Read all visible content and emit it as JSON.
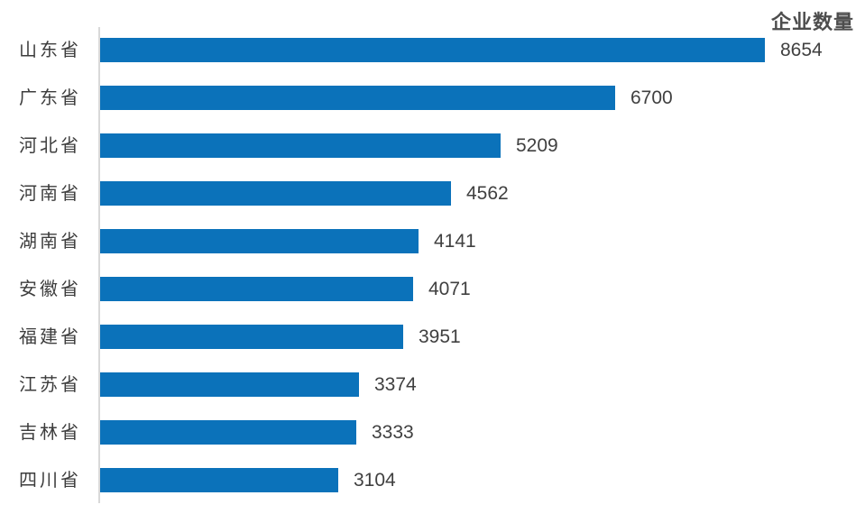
{
  "chart_data": {
    "type": "bar",
    "orientation": "horizontal",
    "title": "企业数量",
    "categories": [
      "山东省",
      "广东省",
      "河北省",
      "河南省",
      "湖南省",
      "安徽省",
      "福建省",
      "江苏省",
      "吉林省",
      "四川省"
    ],
    "values": [
      8654,
      6700,
      5209,
      4562,
      4141,
      4071,
      3951,
      3374,
      3333,
      3104
    ],
    "xlim": [
      0,
      8654
    ],
    "value_labels": "end-of-bar",
    "grid": false,
    "legend": false,
    "bar_color": "#0b72ba",
    "axis_line_color": "#d9d9d9",
    "title_color": "#4d4d4d",
    "category_label_color": "#3d3d3d",
    "value_label_color": "#404040"
  }
}
